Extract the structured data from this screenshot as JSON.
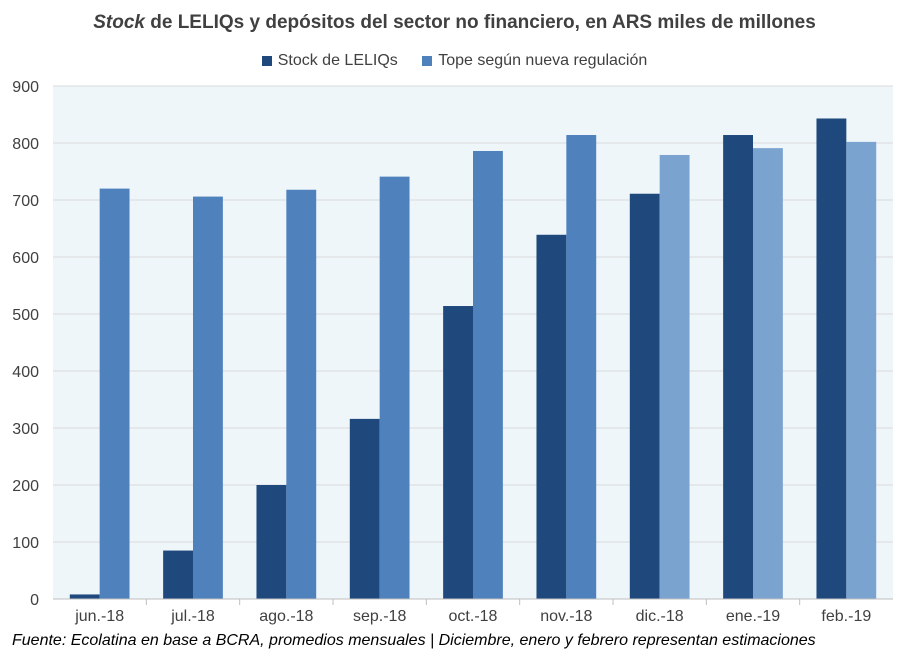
{
  "title": {
    "italic_part": "Stock",
    "rest": " de LELIQs y depósitos del sector no financiero, en ARS miles de millones"
  },
  "source_note": "Fuente: Ecolatina en base a BCRA, promedios mensuales | Diciembre, enero y febrero representan estimaciones",
  "chart_data": {
    "type": "bar",
    "title": "Stock de LELIQs y depósitos del sector no financiero, en ARS miles de millones",
    "xlabel": "",
    "ylabel": "",
    "categories": [
      "jun.-18",
      "jul.-18",
      "ago.-18",
      "sep.-18",
      "oct.-18",
      "nov.-18",
      "dic.-18",
      "ene.-19",
      "feb.-19"
    ],
    "series": [
      {
        "name": "Stock de LELIQs",
        "color": "#1f497d",
        "values": [
          8,
          85,
          200,
          316,
          514,
          639,
          711,
          814,
          843
        ]
      },
      {
        "name": "Tope según nueva regulación",
        "color": "#4f81bd",
        "values": [
          720,
          706,
          718,
          741,
          786,
          814,
          779,
          791,
          802
        ]
      }
    ],
    "estimated_color": "#7ba3d0",
    "estimated_from_index": 6,
    "ylim": [
      0,
      900
    ],
    "yticks": [
      0,
      100,
      200,
      300,
      400,
      500,
      600,
      700,
      800,
      900
    ],
    "grid": true,
    "legend_position": "top"
  }
}
